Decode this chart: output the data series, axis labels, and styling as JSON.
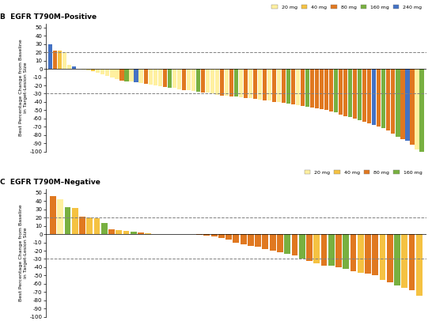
{
  "panel_B_title": "B  EGFR T790M–Positive",
  "panel_C_title": "C  EGFR T790M–Negative",
  "ylabel": "Best Percentage Change from Baseline\nin Target-Lesion Size",
  "ylim_B": [
    -100,
    55
  ],
  "ylim_C": [
    -100,
    55
  ],
  "dashed_lines": [
    20,
    -30
  ],
  "colors": {
    "20mg": "#FFF0A0",
    "40mg": "#F5C242",
    "80mg": "#E07820",
    "160mg": "#78B040",
    "240mg": "#4472C4"
  },
  "legend_B": [
    "20 mg",
    "40 mg",
    "80 mg",
    "160 mg",
    "240 mg"
  ],
  "legend_C": [
    "20 mg",
    "40 mg",
    "80 mg",
    "160 mg"
  ],
  "panel_B_bars": [
    [
      "240mg",
      30
    ],
    [
      "80mg",
      22
    ],
    [
      "40mg",
      22
    ],
    [
      "20mg",
      20
    ],
    [
      "20mg",
      5
    ],
    [
      "240mg",
      3
    ],
    [
      "20mg",
      0
    ],
    [
      "20mg",
      -1
    ],
    [
      "20mg",
      -2
    ],
    [
      "40mg",
      -3
    ],
    [
      "20mg",
      -5
    ],
    [
      "20mg",
      -7
    ],
    [
      "20mg",
      -8
    ],
    [
      "20mg",
      -10
    ],
    [
      "20mg",
      -12
    ],
    [
      "80mg",
      -14
    ],
    [
      "160mg",
      -15
    ],
    [
      "20mg",
      -15
    ],
    [
      "240mg",
      -16
    ],
    [
      "20mg",
      -17
    ],
    [
      "80mg",
      -18
    ],
    [
      "20mg",
      -19
    ],
    [
      "20mg",
      -20
    ],
    [
      "20mg",
      -21
    ],
    [
      "80mg",
      -22
    ],
    [
      "160mg",
      -23
    ],
    [
      "20mg",
      -23
    ],
    [
      "20mg",
      -25
    ],
    [
      "80mg",
      -26
    ],
    [
      "20mg",
      -26
    ],
    [
      "20mg",
      -27
    ],
    [
      "160mg",
      -28
    ],
    [
      "80mg",
      -29
    ],
    [
      "20mg",
      -29
    ],
    [
      "20mg",
      -30
    ],
    [
      "20mg",
      -31
    ],
    [
      "80mg",
      -32
    ],
    [
      "20mg",
      -32
    ],
    [
      "80mg",
      -33
    ],
    [
      "160mg",
      -33
    ],
    [
      "20mg",
      -34
    ],
    [
      "80mg",
      -35
    ],
    [
      "20mg",
      -35
    ],
    [
      "80mg",
      -36
    ],
    [
      "20mg",
      -37
    ],
    [
      "80mg",
      -38
    ],
    [
      "20mg",
      -38
    ],
    [
      "80mg",
      -40
    ],
    [
      "20mg",
      -40
    ],
    [
      "80mg",
      -41
    ],
    [
      "160mg",
      -42
    ],
    [
      "80mg",
      -43
    ],
    [
      "20mg",
      -44
    ],
    [
      "80mg",
      -45
    ],
    [
      "160mg",
      -46
    ],
    [
      "80mg",
      -47
    ],
    [
      "80mg",
      -48
    ],
    [
      "80mg",
      -49
    ],
    [
      "80mg",
      -50
    ],
    [
      "80mg",
      -52
    ],
    [
      "160mg",
      -53
    ],
    [
      "80mg",
      -55
    ],
    [
      "80mg",
      -57
    ],
    [
      "160mg",
      -58
    ],
    [
      "80mg",
      -60
    ],
    [
      "160mg",
      -62
    ],
    [
      "80mg",
      -64
    ],
    [
      "80mg",
      -66
    ],
    [
      "240mg",
      -68
    ],
    [
      "80mg",
      -70
    ],
    [
      "160mg",
      -72
    ],
    [
      "80mg",
      -75
    ],
    [
      "80mg",
      -78
    ],
    [
      "160mg",
      -82
    ],
    [
      "80mg",
      -85
    ],
    [
      "240mg",
      -87
    ],
    [
      "80mg",
      -92
    ],
    [
      "20mg",
      -98
    ],
    [
      "160mg",
      -100
    ]
  ],
  "panel_C_bars": [
    [
      "80mg",
      46
    ],
    [
      "20mg",
      42
    ],
    [
      "160mg",
      33
    ],
    [
      "40mg",
      32
    ],
    [
      "80mg",
      21
    ],
    [
      "40mg",
      20
    ],
    [
      "40mg",
      19
    ],
    [
      "160mg",
      14
    ],
    [
      "80mg",
      6
    ],
    [
      "40mg",
      5
    ],
    [
      "40mg",
      4
    ],
    [
      "160mg",
      3
    ],
    [
      "80mg",
      2
    ],
    [
      "40mg",
      1
    ],
    [
      "80mg",
      0
    ],
    [
      "40mg",
      0
    ],
    [
      "80mg",
      0
    ],
    [
      "80mg",
      0
    ],
    [
      "80mg",
      0
    ],
    [
      "80mg",
      0
    ],
    [
      "80mg",
      -1
    ],
    [
      "80mg",
      -2
    ],
    [
      "80mg",
      -3
    ],
    [
      "80mg",
      -5
    ],
    [
      "80mg",
      -7
    ],
    [
      "80mg",
      -10
    ],
    [
      "80mg",
      -12
    ],
    [
      "80mg",
      -14
    ],
    [
      "80mg",
      -15
    ],
    [
      "80mg",
      -18
    ],
    [
      "80mg",
      -20
    ],
    [
      "80mg",
      -22
    ],
    [
      "160mg",
      -24
    ],
    [
      "80mg",
      -26
    ],
    [
      "160mg",
      -30
    ],
    [
      "80mg",
      -32
    ],
    [
      "40mg",
      -35
    ],
    [
      "80mg",
      -38
    ],
    [
      "160mg",
      -38
    ],
    [
      "80mg",
      -40
    ],
    [
      "160mg",
      -42
    ],
    [
      "80mg",
      -45
    ],
    [
      "40mg",
      -47
    ],
    [
      "80mg",
      -48
    ],
    [
      "80mg",
      -50
    ],
    [
      "40mg",
      -55
    ],
    [
      "80mg",
      -58
    ],
    [
      "160mg",
      -62
    ],
    [
      "40mg",
      -65
    ],
    [
      "80mg",
      -68
    ],
    [
      "40mg",
      -75
    ]
  ]
}
